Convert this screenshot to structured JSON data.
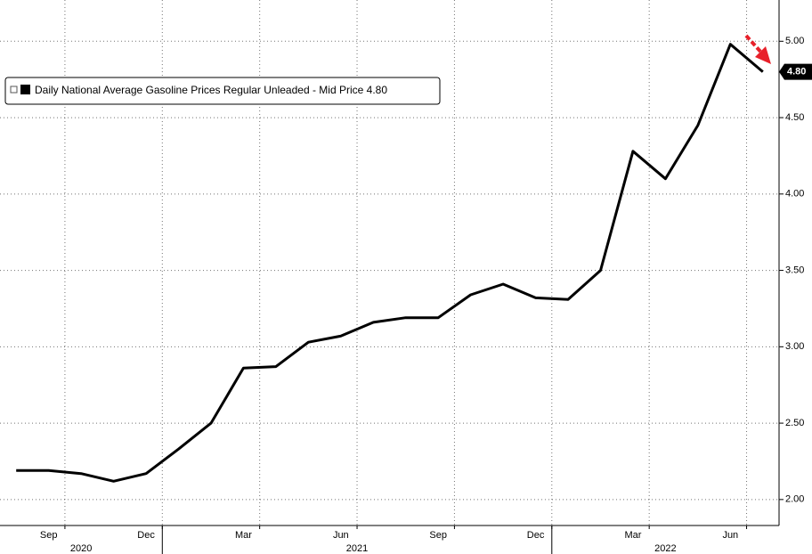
{
  "chart_data": {
    "type": "line",
    "series": [
      {
        "name": "Daily National Average Gasoline Prices Regular Unleaded - Mid Price",
        "color": "#000000",
        "values": [
          2.19,
          2.19,
          2.17,
          2.12,
          2.17,
          2.33,
          2.5,
          2.86,
          2.87,
          3.03,
          3.07,
          3.16,
          3.19,
          3.19,
          3.34,
          3.41,
          3.32,
          3.31,
          3.5,
          4.28,
          4.1,
          4.45,
          4.98,
          4.8
        ]
      }
    ],
    "x": [
      "2020-08",
      "2020-09",
      "2020-10",
      "2020-11",
      "2020-12",
      "2021-01",
      "2021-02",
      "2021-03",
      "2021-04",
      "2021-05",
      "2021-06",
      "2021-07",
      "2021-08",
      "2021-09",
      "2021-10",
      "2021-11",
      "2021-12",
      "2022-01",
      "2022-02",
      "2022-03",
      "2022-04",
      "2022-05",
      "2022-06",
      "2022-07"
    ],
    "xlim": [
      "2020-08",
      "2022-07"
    ],
    "xticks": [
      {
        "value": "2020-09",
        "label": "Sep"
      },
      {
        "value": "2020-12",
        "label": "Dec"
      },
      {
        "value": "2021-03",
        "label": "Mar"
      },
      {
        "value": "2021-06",
        "label": "Jun"
      },
      {
        "value": "2021-09",
        "label": "Sep"
      },
      {
        "value": "2021-12",
        "label": "Dec"
      },
      {
        "value": "2022-03",
        "label": "Mar"
      },
      {
        "value": "2022-06",
        "label": "Jun"
      }
    ],
    "years": [
      "2020",
      "2021",
      "2022"
    ],
    "ylim": [
      1.83,
      5.27
    ],
    "yticks": [
      {
        "value": 2,
        "label": "2.00"
      },
      {
        "value": 2.5,
        "label": "2.50"
      },
      {
        "value": 3,
        "label": "3.00"
      },
      {
        "value": 3.5,
        "label": "3.50"
      },
      {
        "value": 4,
        "label": "4.00"
      },
      {
        "value": 4.5,
        "label": "4.50"
      },
      {
        "value": 5,
        "label": "5.00"
      }
    ],
    "last_price": {
      "value": 4.8,
      "label": "4.80"
    },
    "grid": true
  }
}
